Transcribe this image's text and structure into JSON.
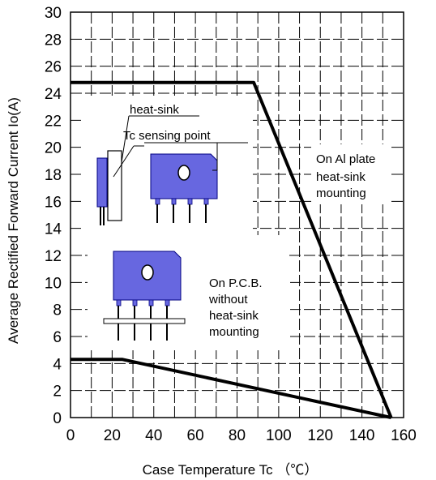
{
  "chart_data": {
    "type": "line",
    "xlabel": "Case Temperature Tc （℃）",
    "ylabel": "Average Rectified Forward Current Io(A)",
    "xlim": [
      0,
      160
    ],
    "ylim": [
      0,
      30
    ],
    "x_ticks": [
      "0",
      "20",
      "40",
      "60",
      "80",
      "100",
      "120",
      "140",
      "160"
    ],
    "y_ticks": [
      "0",
      "2",
      "4",
      "6",
      "8",
      "10",
      "12",
      "14",
      "16",
      "18",
      "20",
      "22",
      "24",
      "26",
      "28",
      "30"
    ],
    "grid": true,
    "grid_style": "dashed",
    "series": [
      {
        "x": [
          0,
          88,
          154
        ],
        "y": [
          24.8,
          24.8,
          0
        ]
      },
      {
        "x": [
          0,
          25,
          154
        ],
        "y": [
          4.3,
          4.3,
          0
        ]
      }
    ],
    "annotations": {
      "al_plate": [
        "On Al plate",
        "heat-sink",
        "mounting"
      ],
      "heat_sink": "heat-sink",
      "tc_point": "Tc sensing point",
      "pcb": [
        "On P.C.B.",
        "without",
        "heat-sink",
        "mounting"
      ]
    },
    "colors": {
      "curve": "#000000",
      "grid": "#000000",
      "device_body": "#6767e0",
      "device_outline": "#000080"
    }
  }
}
